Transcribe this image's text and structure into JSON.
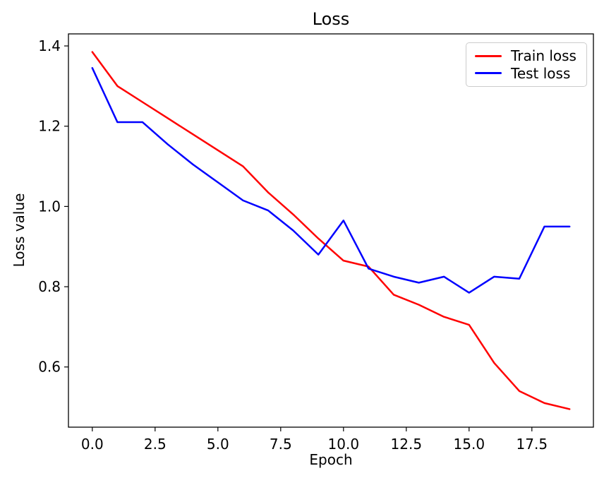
{
  "figure": {
    "title": "Loss",
    "xlabel": "Epoch",
    "ylabel": "Loss value"
  },
  "legend": {
    "position": "upper right",
    "items": [
      {
        "label": "Train loss",
        "color": "#ff0000"
      },
      {
        "label": "Test loss",
        "color": "#0000ff"
      }
    ]
  },
  "chart_data": {
    "type": "line",
    "title": "Loss",
    "xlabel": "Epoch",
    "ylabel": "Loss value",
    "x": [
      0,
      1,
      2,
      3,
      4,
      5,
      6,
      7,
      8,
      9,
      10,
      11,
      12,
      13,
      14,
      15,
      16,
      17,
      18,
      19
    ],
    "series": [
      {
        "name": "Train loss",
        "color": "#ff0000",
        "values": [
          1.385,
          1.3,
          1.26,
          1.22,
          1.18,
          1.14,
          1.1,
          1.035,
          0.98,
          0.92,
          0.865,
          0.85,
          0.78,
          0.755,
          0.725,
          0.705,
          0.61,
          0.54,
          0.51,
          0.495
        ]
      },
      {
        "name": "Test loss",
        "color": "#0000ff",
        "values": [
          1.345,
          1.21,
          1.21,
          1.155,
          1.105,
          1.06,
          1.015,
          0.99,
          0.94,
          0.88,
          0.965,
          0.845,
          0.825,
          0.81,
          0.825,
          0.785,
          0.825,
          0.82,
          0.95,
          0.95
        ]
      }
    ],
    "xlim": [
      -0.95,
      19.95
    ],
    "ylim": [
      0.45,
      1.43
    ],
    "xticks": [
      0,
      2.5,
      5,
      7.5,
      10,
      12.5,
      15,
      17.5
    ],
    "xtick_labels": [
      "0.0",
      "2.5",
      "5.0",
      "7.5",
      "10.0",
      "12.5",
      "15.0",
      "17.5"
    ],
    "yticks": [
      0.6,
      0.8,
      1.0,
      1.2,
      1.4
    ],
    "ytick_labels": [
      "0.6",
      "0.8",
      "1.0",
      "1.2",
      "1.4"
    ],
    "grid": false,
    "legend_position": "upper right",
    "line_width": 2.5,
    "axis_color": "#000000",
    "tick_label_color": "#000000"
  }
}
